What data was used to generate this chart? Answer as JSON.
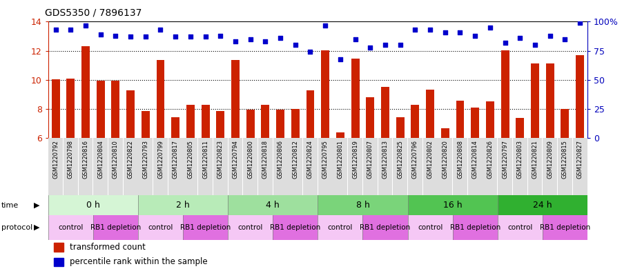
{
  "title": "GDS5350 / 7896137",
  "samples": [
    "GSM1220792",
    "GSM1220798",
    "GSM1220816",
    "GSM1220804",
    "GSM1220810",
    "GSM1220822",
    "GSM1220793",
    "GSM1220799",
    "GSM1220817",
    "GSM1220805",
    "GSM1220811",
    "GSM1220823",
    "GSM1220794",
    "GSM1220800",
    "GSM1220818",
    "GSM1220806",
    "GSM1220812",
    "GSM1220824",
    "GSM1220795",
    "GSM1220801",
    "GSM1220819",
    "GSM1220807",
    "GSM1220813",
    "GSM1220825",
    "GSM1220796",
    "GSM1220802",
    "GSM1220820",
    "GSM1220808",
    "GSM1220814",
    "GSM1220826",
    "GSM1220797",
    "GSM1220803",
    "GSM1220821",
    "GSM1220809",
    "GSM1220815",
    "GSM1220827"
  ],
  "bar_values": [
    10.05,
    10.1,
    12.3,
    9.95,
    9.95,
    9.3,
    7.85,
    11.35,
    7.42,
    8.3,
    8.3,
    7.85,
    11.38,
    7.95,
    8.3,
    7.95,
    8.0,
    9.3,
    12.05,
    6.4,
    11.45,
    8.8,
    9.5,
    7.45,
    8.3,
    9.35,
    6.7,
    8.6,
    8.1,
    8.55,
    12.05,
    7.4,
    11.15,
    11.15,
    8.0,
    11.7
  ],
  "scatter_values": [
    93,
    93,
    97,
    89,
    88,
    87,
    87,
    93,
    87,
    87,
    87,
    88,
    83,
    85,
    83,
    86,
    80,
    74,
    97,
    68,
    85,
    78,
    80,
    80,
    93,
    93,
    91,
    91,
    88,
    95,
    82,
    86,
    80,
    88,
    85,
    99
  ],
  "time_groups": [
    {
      "label": "0 h",
      "start": 0,
      "end": 6,
      "color": "#d5f5d5"
    },
    {
      "label": "2 h",
      "start": 6,
      "end": 12,
      "color": "#b8ebb8"
    },
    {
      "label": "4 h",
      "start": 12,
      "end": 18,
      "color": "#9ee09e"
    },
    {
      "label": "8 h",
      "start": 18,
      "end": 24,
      "color": "#7ad47a"
    },
    {
      "label": "16 h",
      "start": 24,
      "end": 30,
      "color": "#52c452"
    },
    {
      "label": "24 h",
      "start": 30,
      "end": 36,
      "color": "#30b030"
    }
  ],
  "protocol_groups": [
    {
      "label": "control",
      "start": 0,
      "end": 3,
      "color": "#f5c8f5"
    },
    {
      "label": "RB1 depletion",
      "start": 3,
      "end": 6,
      "color": "#e070e0"
    },
    {
      "label": "control",
      "start": 6,
      "end": 9,
      "color": "#f5c8f5"
    },
    {
      "label": "RB1 depletion",
      "start": 9,
      "end": 12,
      "color": "#e070e0"
    },
    {
      "label": "control",
      "start": 12,
      "end": 15,
      "color": "#f5c8f5"
    },
    {
      "label": "RB1 depletion",
      "start": 15,
      "end": 18,
      "color": "#e070e0"
    },
    {
      "label": "control",
      "start": 18,
      "end": 21,
      "color": "#f5c8f5"
    },
    {
      "label": "RB1 depletion",
      "start": 21,
      "end": 24,
      "color": "#e070e0"
    },
    {
      "label": "control",
      "start": 24,
      "end": 27,
      "color": "#f5c8f5"
    },
    {
      "label": "RB1 depletion",
      "start": 27,
      "end": 30,
      "color": "#e070e0"
    },
    {
      "label": "control",
      "start": 30,
      "end": 33,
      "color": "#f5c8f5"
    },
    {
      "label": "RB1 depletion",
      "start": 33,
      "end": 36,
      "color": "#e070e0"
    }
  ],
  "bar_color": "#cc2200",
  "scatter_color": "#0000cc",
  "ylim_left": [
    6,
    14
  ],
  "ylim_right": [
    0,
    100
  ],
  "yticks_left": [
    6,
    8,
    10,
    12,
    14
  ],
  "yticks_right": [
    0,
    25,
    50,
    75,
    100
  ],
  "ylabel_left_color": "#cc2200",
  "ylabel_right_color": "#0000bb",
  "grid_yticks": [
    8,
    10,
    12
  ],
  "bg_color": "#ffffff",
  "tick_label_bg": "#dddddd"
}
